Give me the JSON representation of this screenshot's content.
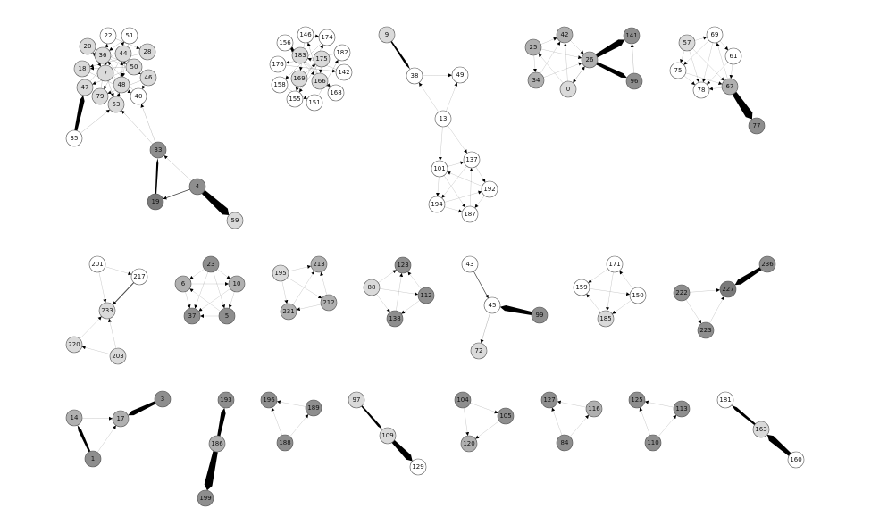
{
  "colors": {
    "white": "#ffffff",
    "light": "#dadada",
    "mid": "#b0b0b0",
    "dark": "#8e8e8e",
    "darker": "#7a7a7a",
    "edge": "#666666",
    "heavy": "#000000"
  },
  "nodes": [
    {
      "id": "22",
      "shade": "white"
    },
    {
      "id": "51",
      "shade": "white"
    },
    {
      "id": "20",
      "shade": "light"
    },
    {
      "id": "36",
      "shade": "light"
    },
    {
      "id": "44",
      "shade": "light"
    },
    {
      "id": "28",
      "shade": "light"
    },
    {
      "id": "18",
      "shade": "light"
    },
    {
      "id": "7",
      "shade": "light"
    },
    {
      "id": "50",
      "shade": "light"
    },
    {
      "id": "46",
      "shade": "light"
    },
    {
      "id": "47",
      "shade": "light"
    },
    {
      "id": "79",
      "shade": "light"
    },
    {
      "id": "48",
      "shade": "light"
    },
    {
      "id": "40",
      "shade": "white"
    },
    {
      "id": "53",
      "shade": "light"
    },
    {
      "id": "35",
      "shade": "white"
    },
    {
      "id": "33",
      "shade": "dark"
    },
    {
      "id": "4",
      "shade": "dark"
    },
    {
      "id": "19",
      "shade": "darker"
    },
    {
      "id": "59",
      "shade": "light"
    },
    {
      "id": "146",
      "shade": "white"
    },
    {
      "id": "174",
      "shade": "white"
    },
    {
      "id": "156",
      "shade": "white"
    },
    {
      "id": "182",
      "shade": "white"
    },
    {
      "id": "183",
      "shade": "light"
    },
    {
      "id": "175",
      "shade": "light"
    },
    {
      "id": "176",
      "shade": "white"
    },
    {
      "id": "142",
      "shade": "white"
    },
    {
      "id": "169",
      "shade": "light"
    },
    {
      "id": "166",
      "shade": "light"
    },
    {
      "id": "158",
      "shade": "white"
    },
    {
      "id": "168",
      "shade": "white"
    },
    {
      "id": "155",
      "shade": "white"
    },
    {
      "id": "151",
      "shade": "white"
    },
    {
      "id": "9",
      "shade": "light"
    },
    {
      "id": "38",
      "shade": "white"
    },
    {
      "id": "49",
      "shade": "white"
    },
    {
      "id": "13",
      "shade": "white"
    },
    {
      "id": "137",
      "shade": "white"
    },
    {
      "id": "101",
      "shade": "white"
    },
    {
      "id": "192",
      "shade": "white"
    },
    {
      "id": "194",
      "shade": "white"
    },
    {
      "id": "187",
      "shade": "white"
    },
    {
      "id": "42",
      "shade": "mid"
    },
    {
      "id": "141",
      "shade": "dark"
    },
    {
      "id": "25",
      "shade": "mid"
    },
    {
      "id": "26",
      "shade": "mid"
    },
    {
      "id": "34",
      "shade": "mid"
    },
    {
      "id": "0",
      "shade": "light"
    },
    {
      "id": "96",
      "shade": "dark"
    },
    {
      "id": "57",
      "shade": "light"
    },
    {
      "id": "69",
      "shade": "white"
    },
    {
      "id": "61",
      "shade": "white"
    },
    {
      "id": "75",
      "shade": "white"
    },
    {
      "id": "78",
      "shade": "white"
    },
    {
      "id": "67",
      "shade": "mid"
    },
    {
      "id": "77",
      "shade": "dark"
    },
    {
      "id": "201",
      "shade": "white"
    },
    {
      "id": "217",
      "shade": "white"
    },
    {
      "id": "233",
      "shade": "light"
    },
    {
      "id": "220",
      "shade": "light"
    },
    {
      "id": "203",
      "shade": "light"
    },
    {
      "id": "23",
      "shade": "dark"
    },
    {
      "id": "6",
      "shade": "mid"
    },
    {
      "id": "10",
      "shade": "mid"
    },
    {
      "id": "37",
      "shade": "dark"
    },
    {
      "id": "5",
      "shade": "dark"
    },
    {
      "id": "195",
      "shade": "light"
    },
    {
      "id": "213",
      "shade": "mid"
    },
    {
      "id": "212",
      "shade": "mid"
    },
    {
      "id": "231",
      "shade": "mid"
    },
    {
      "id": "123",
      "shade": "dark"
    },
    {
      "id": "88",
      "shade": "light"
    },
    {
      "id": "112",
      "shade": "dark"
    },
    {
      "id": "138",
      "shade": "dark"
    },
    {
      "id": "43",
      "shade": "white"
    },
    {
      "id": "45",
      "shade": "white"
    },
    {
      "id": "99",
      "shade": "dark"
    },
    {
      "id": "72",
      "shade": "light"
    },
    {
      "id": "171",
      "shade": "white"
    },
    {
      "id": "159",
      "shade": "white"
    },
    {
      "id": "150",
      "shade": "white"
    },
    {
      "id": "185",
      "shade": "light"
    },
    {
      "id": "236",
      "shade": "dark"
    },
    {
      "id": "222",
      "shade": "dark"
    },
    {
      "id": "227",
      "shade": "darker"
    },
    {
      "id": "223",
      "shade": "dark"
    },
    {
      "id": "3",
      "shade": "dark"
    },
    {
      "id": "14",
      "shade": "mid"
    },
    {
      "id": "17",
      "shade": "mid"
    },
    {
      "id": "1",
      "shade": "dark"
    },
    {
      "id": "193",
      "shade": "dark"
    },
    {
      "id": "186",
      "shade": "mid"
    },
    {
      "id": "199",
      "shade": "dark"
    },
    {
      "id": "196",
      "shade": "dark"
    },
    {
      "id": "189",
      "shade": "dark"
    },
    {
      "id": "188",
      "shade": "dark"
    },
    {
      "id": "97",
      "shade": "light"
    },
    {
      "id": "109",
      "shade": "light"
    },
    {
      "id": "129",
      "shade": "white"
    },
    {
      "id": "104",
      "shade": "dark"
    },
    {
      "id": "105",
      "shade": "dark"
    },
    {
      "id": "120",
      "shade": "mid"
    },
    {
      "id": "127",
      "shade": "dark"
    },
    {
      "id": "116",
      "shade": "mid"
    },
    {
      "id": "84",
      "shade": "dark"
    },
    {
      "id": "125",
      "shade": "dark"
    },
    {
      "id": "113",
      "shade": "dark"
    },
    {
      "id": "110",
      "shade": "dark"
    },
    {
      "id": "181",
      "shade": "white"
    },
    {
      "id": "163",
      "shade": "light"
    },
    {
      "id": "160",
      "shade": "white"
    }
  ],
  "edges": [
    {
      "from": "35",
      "to": "47",
      "weight": 3
    },
    {
      "from": "35",
      "to": "53",
      "weight": 0.5
    },
    {
      "from": "33",
      "to": "53",
      "weight": 0.5
    },
    {
      "from": "33",
      "to": "40",
      "weight": 0.5
    },
    {
      "from": "19",
      "to": "33",
      "weight": 1.2
    },
    {
      "from": "4",
      "to": "19",
      "weight": 0.8
    },
    {
      "from": "4",
      "to": "33",
      "weight": 0.5
    },
    {
      "from": "4",
      "to": "59",
      "weight": 5
    },
    {
      "from": "22",
      "to": "7",
      "weight": 0.5
    },
    {
      "from": "51",
      "to": "48",
      "weight": 0.5
    },
    {
      "from": "20",
      "to": "50",
      "weight": 0.5
    },
    {
      "from": "36",
      "to": "46",
      "weight": 0.5
    },
    {
      "from": "44",
      "to": "79",
      "weight": 0.5
    },
    {
      "from": "28",
      "to": "18",
      "weight": 0.5
    },
    {
      "from": "18",
      "to": "40",
      "weight": 0.5
    },
    {
      "from": "7",
      "to": "53",
      "weight": 0.5
    },
    {
      "from": "50",
      "to": "47",
      "weight": 0.5
    },
    {
      "from": "46",
      "to": "79",
      "weight": 0.5
    },
    {
      "from": "47",
      "to": "51",
      "weight": 0.5
    },
    {
      "from": "79",
      "to": "22",
      "weight": 0.5
    },
    {
      "from": "48",
      "to": "20",
      "weight": 0.5
    },
    {
      "from": "40",
      "to": "36",
      "weight": 0.5
    },
    {
      "from": "53",
      "to": "44",
      "weight": 0.5
    },
    {
      "from": "22",
      "to": "28",
      "weight": 0.5
    },
    {
      "from": "51",
      "to": "36",
      "weight": 0.5
    },
    {
      "from": "20",
      "to": "7",
      "weight": 0.5
    },
    {
      "from": "44",
      "to": "48",
      "weight": 0.5
    },
    {
      "from": "50",
      "to": "18",
      "weight": 0.5
    },
    {
      "from": "46",
      "to": "40",
      "weight": 0.5
    },
    {
      "from": "53",
      "to": "48",
      "weight": 0.5
    },
    {
      "from": "146",
      "to": "169",
      "weight": 0.5
    },
    {
      "from": "174",
      "to": "158",
      "weight": 0.5
    },
    {
      "from": "156",
      "to": "166",
      "weight": 0.5
    },
    {
      "from": "182",
      "to": "176",
      "weight": 0.5
    },
    {
      "from": "183",
      "to": "168",
      "weight": 0.5
    },
    {
      "from": "175",
      "to": "155",
      "weight": 0.5
    },
    {
      "from": "176",
      "to": "142",
      "weight": 0.5
    },
    {
      "from": "142",
      "to": "183",
      "weight": 0.5
    },
    {
      "from": "169",
      "to": "175",
      "weight": 0.5
    },
    {
      "from": "166",
      "to": "146",
      "weight": 0.5
    },
    {
      "from": "158",
      "to": "151",
      "weight": 0.5
    },
    {
      "from": "168",
      "to": "156",
      "weight": 0.5
    },
    {
      "from": "155",
      "to": "174",
      "weight": 0.5
    },
    {
      "from": "151",
      "to": "182",
      "weight": 0.5
    },
    {
      "from": "146",
      "to": "174",
      "weight": 0.5
    },
    {
      "from": "156",
      "to": "183",
      "weight": 0.5
    },
    {
      "from": "175",
      "to": "166",
      "weight": 0.5
    },
    {
      "from": "169",
      "to": "155",
      "weight": 0.5
    },
    {
      "from": "9",
      "to": "38",
      "weight": 1.5
    },
    {
      "from": "38",
      "to": "49",
      "weight": 0.4
    },
    {
      "from": "13",
      "to": "38",
      "weight": 0.4
    },
    {
      "from": "13",
      "to": "49",
      "weight": 0.4
    },
    {
      "from": "13",
      "to": "137",
      "weight": 0.4
    },
    {
      "from": "13",
      "to": "101",
      "weight": 0.4
    },
    {
      "from": "137",
      "to": "192",
      "weight": 0.4
    },
    {
      "from": "137",
      "to": "194",
      "weight": 0.4
    },
    {
      "from": "101",
      "to": "187",
      "weight": 0.4
    },
    {
      "from": "101",
      "to": "194",
      "weight": 0.4
    },
    {
      "from": "192",
      "to": "187",
      "weight": 0.4
    },
    {
      "from": "194",
      "to": "187",
      "weight": 0.4
    },
    {
      "from": "192",
      "to": "101",
      "weight": 0.4
    },
    {
      "from": "187",
      "to": "137",
      "weight": 0.4
    },
    {
      "from": "194",
      "to": "192",
      "weight": 0.4
    },
    {
      "from": "101",
      "to": "137",
      "weight": 0.4
    },
    {
      "from": "26",
      "to": "141",
      "weight": 4
    },
    {
      "from": "26",
      "to": "96",
      "weight": 3
    },
    {
      "from": "96",
      "to": "141",
      "weight": 0.5
    },
    {
      "from": "25",
      "to": "42",
      "weight": 0.4
    },
    {
      "from": "25",
      "to": "26",
      "weight": 0.4
    },
    {
      "from": "25",
      "to": "34",
      "weight": 0.4
    },
    {
      "from": "34",
      "to": "42",
      "weight": 0.4
    },
    {
      "from": "34",
      "to": "26",
      "weight": 0.4
    },
    {
      "from": "0",
      "to": "42",
      "weight": 0.4
    },
    {
      "from": "0",
      "to": "26",
      "weight": 0.4
    },
    {
      "from": "0",
      "to": "25",
      "weight": 0.4
    },
    {
      "from": "42",
      "to": "26",
      "weight": 0.4
    },
    {
      "from": "26",
      "to": "0",
      "weight": 0.4
    },
    {
      "from": "67",
      "to": "77",
      "weight": 5
    },
    {
      "from": "57",
      "to": "69",
      "weight": 0.4
    },
    {
      "from": "57",
      "to": "75",
      "weight": 0.4
    },
    {
      "from": "57",
      "to": "78",
      "weight": 0.4
    },
    {
      "from": "57",
      "to": "67",
      "weight": 0.4
    },
    {
      "from": "69",
      "to": "61",
      "weight": 0.4
    },
    {
      "from": "69",
      "to": "78",
      "weight": 0.4
    },
    {
      "from": "69",
      "to": "75",
      "weight": 0.4
    },
    {
      "from": "61",
      "to": "78",
      "weight": 0.4
    },
    {
      "from": "61",
      "to": "67",
      "weight": 0.4
    },
    {
      "from": "75",
      "to": "78",
      "weight": 0.4
    },
    {
      "from": "75",
      "to": "67",
      "weight": 0.4
    },
    {
      "from": "67",
      "to": "78",
      "weight": 0.4
    },
    {
      "from": "67",
      "to": "69",
      "weight": 0.4
    },
    {
      "from": "201",
      "to": "217",
      "weight": 0.4
    },
    {
      "from": "201",
      "to": "233",
      "weight": 0.4
    },
    {
      "from": "217",
      "to": "233",
      "weight": 1
    },
    {
      "from": "220",
      "to": "233",
      "weight": 0.4
    },
    {
      "from": "203",
      "to": "233",
      "weight": 0.4
    },
    {
      "from": "203",
      "to": "220",
      "weight": 0.4
    },
    {
      "from": "23",
      "to": "6",
      "weight": 0.4
    },
    {
      "from": "23",
      "to": "10",
      "weight": 0.4
    },
    {
      "from": "23",
      "to": "37",
      "weight": 0.4
    },
    {
      "from": "23",
      "to": "5",
      "weight": 0.4
    },
    {
      "from": "6",
      "to": "37",
      "weight": 0.4
    },
    {
      "from": "6",
      "to": "10",
      "weight": 0.4
    },
    {
      "from": "10",
      "to": "5",
      "weight": 0.4
    },
    {
      "from": "10",
      "to": "37",
      "weight": 0.4
    },
    {
      "from": "5",
      "to": "37",
      "weight": 0.4
    },
    {
      "from": "5",
      "to": "6",
      "weight": 0.4
    },
    {
      "from": "195",
      "to": "213",
      "weight": 0.4
    },
    {
      "from": "195",
      "to": "231",
      "weight": 0.4
    },
    {
      "from": "195",
      "to": "212",
      "weight": 0.4
    },
    {
      "from": "212",
      "to": "213",
      "weight": 0.4
    },
    {
      "from": "212",
      "to": "231",
      "weight": 0.4
    },
    {
      "from": "231",
      "to": "213",
      "weight": 0.4
    },
    {
      "from": "88",
      "to": "123",
      "weight": 0.4
    },
    {
      "from": "88",
      "to": "112",
      "weight": 0.4
    },
    {
      "from": "88",
      "to": "138",
      "weight": 0.4
    },
    {
      "from": "112",
      "to": "123",
      "weight": 0.4
    },
    {
      "from": "112",
      "to": "138",
      "weight": 0.4
    },
    {
      "from": "138",
      "to": "123",
      "weight": 0.4
    },
    {
      "from": "43",
      "to": "45",
      "weight": 0.7
    },
    {
      "from": "99",
      "to": "45",
      "weight": 3.5
    },
    {
      "from": "45",
      "to": "72",
      "weight": 0.6
    },
    {
      "from": "171",
      "to": "159",
      "weight": 0.4
    },
    {
      "from": "171",
      "to": "185",
      "weight": 0.4
    },
    {
      "from": "150",
      "to": "171",
      "weight": 0.4
    },
    {
      "from": "150",
      "to": "185",
      "weight": 0.4
    },
    {
      "from": "159",
      "to": "150",
      "weight": 0.4
    },
    {
      "from": "185",
      "to": "159",
      "weight": 0.4
    },
    {
      "from": "236",
      "to": "227",
      "weight": 3.5
    },
    {
      "from": "222",
      "to": "227",
      "weight": 0.4
    },
    {
      "from": "222",
      "to": "223",
      "weight": 0.4
    },
    {
      "from": "223",
      "to": "227",
      "weight": 0.4
    },
    {
      "from": "3",
      "to": "17",
      "weight": 3
    },
    {
      "from": "1",
      "to": "14",
      "weight": 2
    },
    {
      "from": "14",
      "to": "17",
      "weight": 0.4
    },
    {
      "from": "1",
      "to": "17",
      "weight": 0.4
    },
    {
      "from": "186",
      "to": "193",
      "weight": 3
    },
    {
      "from": "186",
      "to": "199",
      "weight": 5
    },
    {
      "from": "189",
      "to": "196",
      "weight": 0.4
    },
    {
      "from": "188",
      "to": "196",
      "weight": 0.4
    },
    {
      "from": "188",
      "to": "189",
      "weight": 0.4
    },
    {
      "from": "97",
      "to": "109",
      "weight": 1.5
    },
    {
      "from": "109",
      "to": "129",
      "weight": 4
    },
    {
      "from": "104",
      "to": "105",
      "weight": 0.4
    },
    {
      "from": "104",
      "to": "120",
      "weight": 0.4
    },
    {
      "from": "105",
      "to": "120",
      "weight": 0.4
    },
    {
      "from": "116",
      "to": "127",
      "weight": 0.4
    },
    {
      "from": "84",
      "to": "127",
      "weight": 0.4
    },
    {
      "from": "84",
      "to": "116",
      "weight": 0.4
    },
    {
      "from": "113",
      "to": "125",
      "weight": 0.4
    },
    {
      "from": "110",
      "to": "125",
      "weight": 0.4
    },
    {
      "from": "110",
      "to": "113",
      "weight": 0.4
    },
    {
      "from": "163",
      "to": "181",
      "weight": 2
    },
    {
      "from": "160",
      "to": "163",
      "weight": 4
    }
  ]
}
